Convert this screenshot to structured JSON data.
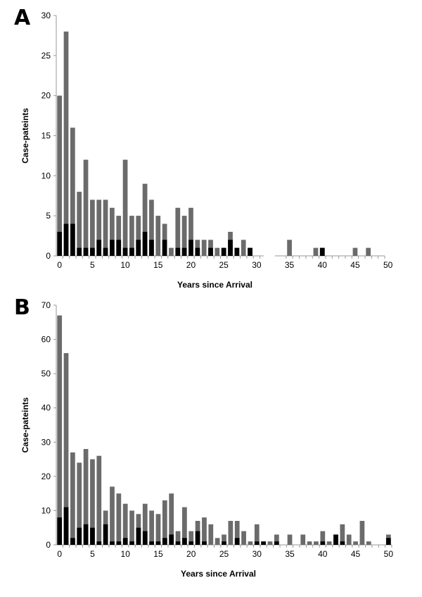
{
  "colors": {
    "total": "#6b6b6b",
    "highlight": "#000000",
    "axis": "#9a9a9a"
  },
  "chart_data": [
    {
      "type": "bar",
      "stacked": true,
      "panel_label": "A",
      "xlabel": "Years since Arrival",
      "ylabel": "Case-pateints",
      "ylim": [
        0,
        30
      ],
      "yticks": [
        0,
        5,
        10,
        15,
        20,
        25,
        30
      ],
      "xlim": [
        0,
        50
      ],
      "xticks": [
        0,
        5,
        10,
        15,
        20,
        25,
        30,
        35,
        40,
        45,
        50
      ],
      "x": [
        0,
        1,
        2,
        3,
        4,
        5,
        6,
        7,
        8,
        9,
        10,
        11,
        12,
        13,
        14,
        15,
        16,
        17,
        18,
        19,
        20,
        21,
        22,
        23,
        24,
        25,
        26,
        27,
        28,
        29,
        30,
        31,
        32,
        33,
        34,
        35,
        36,
        37,
        38,
        39,
        40,
        41,
        42,
        43,
        44,
        45,
        46,
        47,
        48,
        49
      ],
      "axis_break_after": 31,
      "series": [
        {
          "role": "total",
          "values": [
            20,
            28,
            16,
            8,
            12,
            7,
            7,
            7,
            6,
            5,
            12,
            5,
            5,
            9,
            7,
            5,
            4,
            1,
            6,
            5,
            6,
            2,
            2,
            2,
            1,
            1,
            3,
            1,
            2,
            1,
            0,
            0,
            0,
            0,
            0,
            2,
            0,
            0,
            0,
            1,
            1,
            0,
            0,
            0,
            0,
            1,
            0,
            1,
            0,
            0
          ]
        },
        {
          "role": "subset",
          "values": [
            3,
            4,
            4,
            1,
            1,
            1,
            2,
            1,
            2,
            2,
            1,
            1,
            2,
            3,
            2,
            0,
            2,
            0,
            1,
            1,
            2,
            1,
            0,
            1,
            0,
            1,
            2,
            1,
            0,
            1,
            0,
            0,
            0,
            0,
            0,
            0,
            0,
            0,
            0,
            0,
            1,
            0,
            0,
            0,
            0,
            0,
            0,
            0,
            0,
            0
          ]
        }
      ]
    },
    {
      "type": "bar",
      "stacked": true,
      "panel_label": "B",
      "xlabel": "Years since Arrival",
      "ylabel": "Case-pateints",
      "ylim": [
        0,
        70
      ],
      "yticks": [
        0,
        10,
        20,
        30,
        40,
        50,
        60,
        70
      ],
      "xlim": [
        0,
        50
      ],
      "xticks": [
        0,
        5,
        10,
        15,
        20,
        25,
        30,
        35,
        40,
        45,
        50
      ],
      "x": [
        0,
        1,
        2,
        3,
        4,
        5,
        6,
        7,
        8,
        9,
        10,
        11,
        12,
        13,
        14,
        15,
        16,
        17,
        18,
        19,
        20,
        21,
        22,
        23,
        24,
        25,
        26,
        27,
        28,
        29,
        30,
        31,
        32,
        33,
        34,
        35,
        36,
        37,
        38,
        39,
        40,
        41,
        42,
        43,
        44,
        45,
        46,
        47,
        48,
        49,
        50
      ],
      "series": [
        {
          "role": "total",
          "values": [
            67,
            56,
            27,
            24,
            28,
            25,
            26,
            10,
            17,
            15,
            12,
            10,
            9,
            12,
            10,
            9,
            13,
            15,
            4,
            11,
            4,
            7,
            8,
            6,
            2,
            3,
            7,
            7,
            4,
            1,
            6,
            1,
            1,
            3,
            0,
            3,
            0,
            3,
            1,
            1,
            4,
            1,
            3,
            6,
            3,
            1,
            7,
            1,
            0,
            0,
            3
          ]
        },
        {
          "role": "subset",
          "values": [
            8,
            11,
            2,
            5,
            6,
            5,
            1,
            6,
            1,
            1,
            2,
            1,
            5,
            4,
            1,
            1,
            2,
            3,
            1,
            2,
            1,
            4,
            1,
            0,
            0,
            1,
            0,
            2,
            0,
            0,
            1,
            1,
            0,
            1,
            0,
            0,
            0,
            0,
            0,
            0,
            1,
            0,
            3,
            1,
            0,
            0,
            0,
            0,
            0,
            0,
            2
          ]
        }
      ]
    }
  ]
}
